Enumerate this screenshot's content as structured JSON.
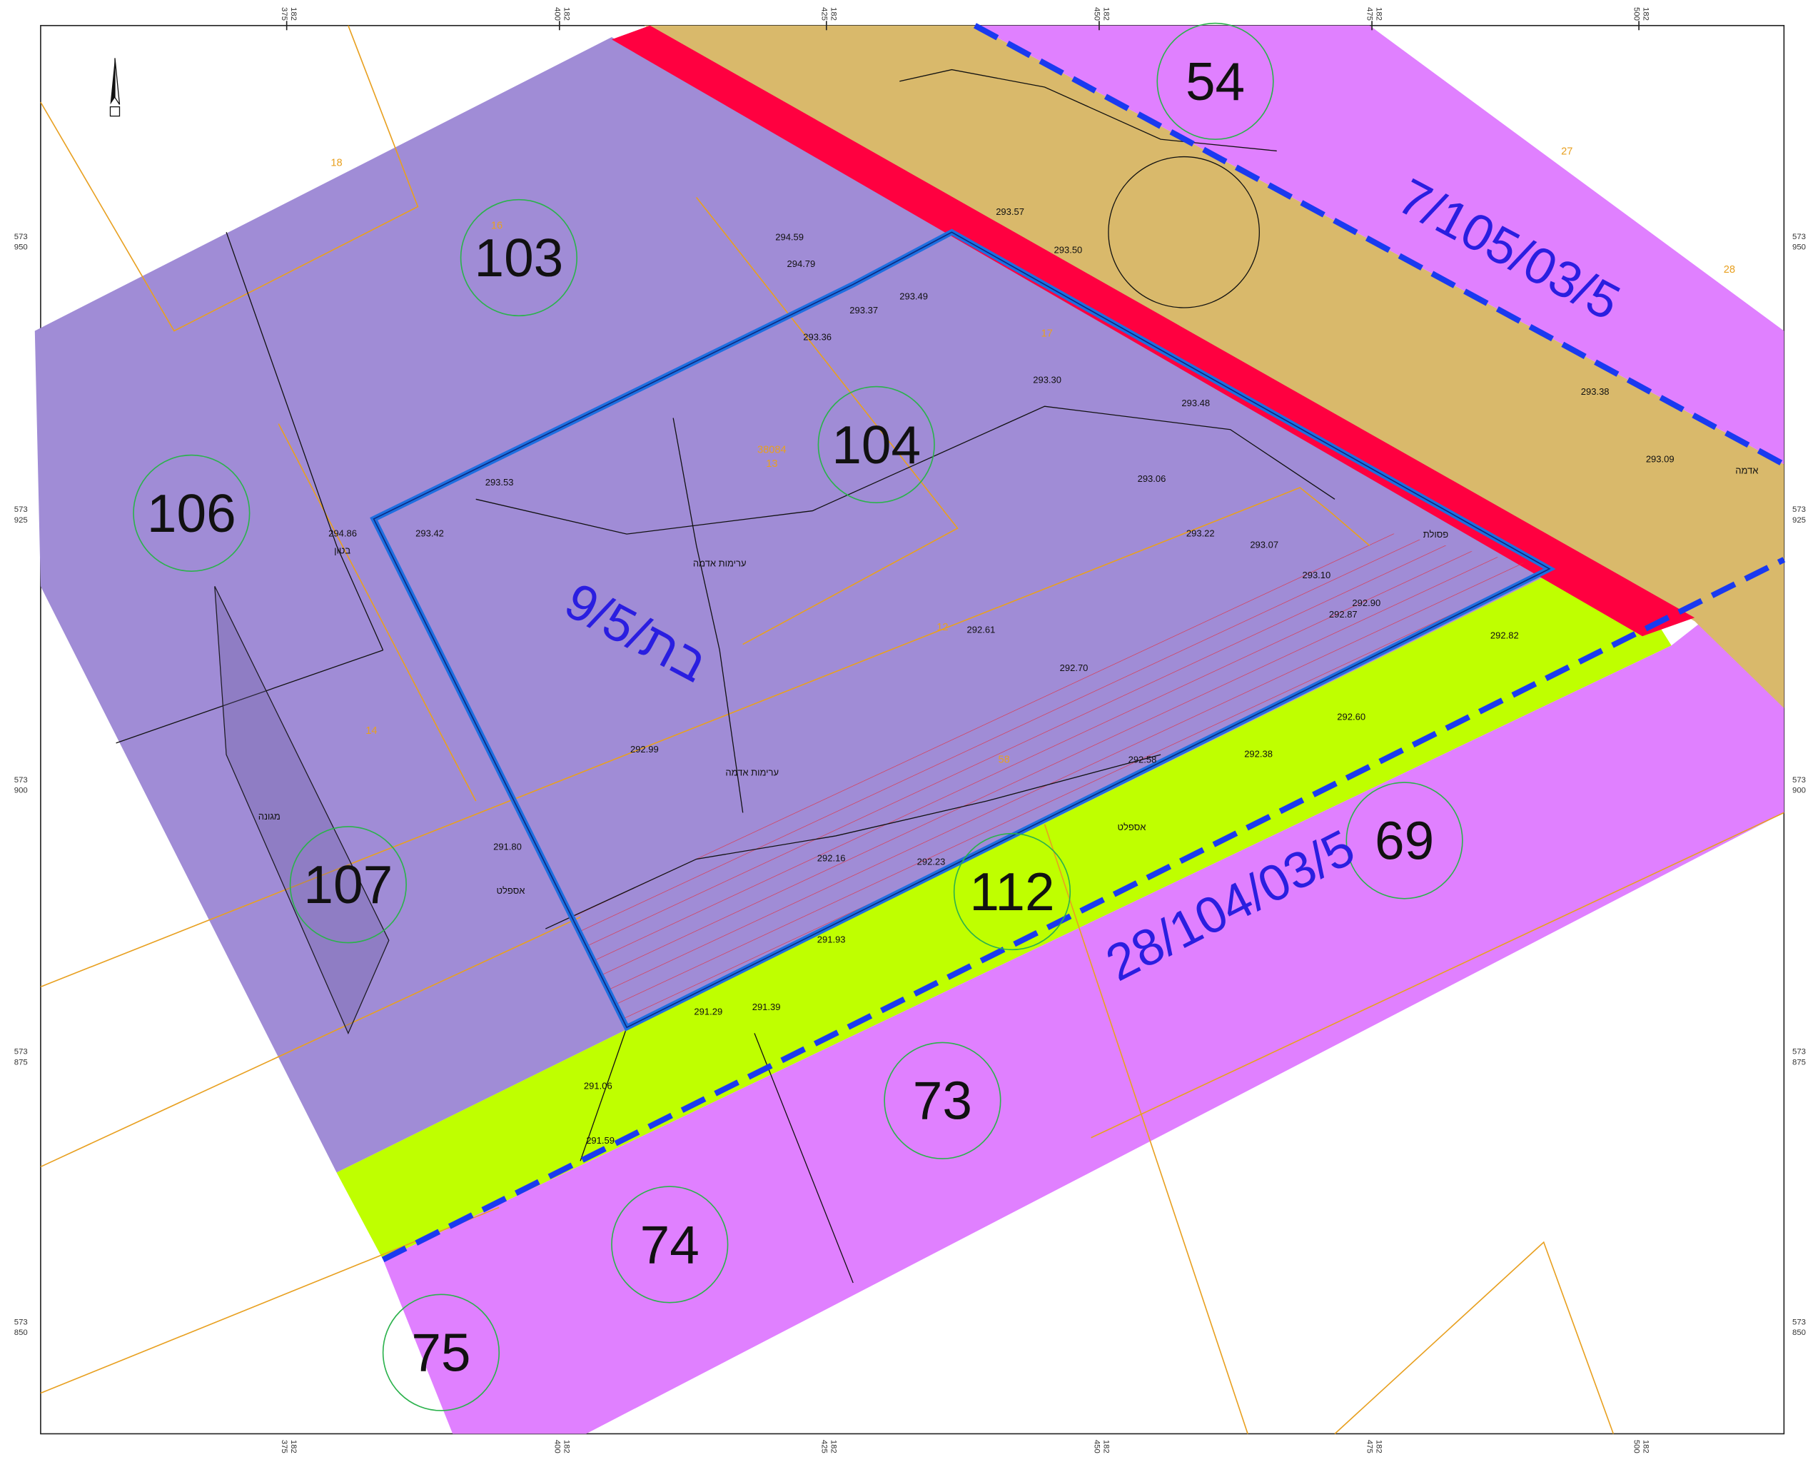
{
  "parcels": [
    "54",
    "103",
    "104",
    "106",
    "107",
    "112",
    "69",
    "73",
    "74",
    "75"
  ],
  "plans": [
    "7/105/03/5",
    "28/104/03/5",
    "9/בת/5"
  ],
  "grid_x": {
    "prefix": "182",
    "labels": [
      "375",
      "400",
      "425",
      "450",
      "475",
      "500"
    ]
  },
  "grid_y": {
    "prefix": "573",
    "labels": [
      "950",
      "925",
      "900",
      "875",
      "850"
    ]
  },
  "elevations": [
    "293.53",
    "294.86",
    "293.42",
    "293.30",
    "293.06",
    "293.22",
    "292.61",
    "292.70",
    "293.48",
    "292.99",
    "291.80",
    "291.29",
    "291.39",
    "292.38",
    "292.60",
    "292.82",
    "293.38",
    "293.09",
    "293.36",
    "293.37",
    "293.49",
    "294.79",
    "294.59",
    "293.50",
    "293.57",
    "292.58",
    "292.16",
    "292.23",
    "291.93",
    "291.06",
    "291.59",
    "293.07",
    "293.10",
    "292.87",
    "292.90"
  ],
  "lot_numbers": [
    "38084",
    "16",
    "17",
    "12",
    "14",
    "58",
    "27",
    "28",
    "18",
    "13"
  ],
  "notes": [
    "ערימות אדמה",
    "ערימות אדמה",
    "אספלט",
    "אספלט",
    "מגונה",
    "בטון",
    "פסולת",
    "אדמה"
  ]
}
